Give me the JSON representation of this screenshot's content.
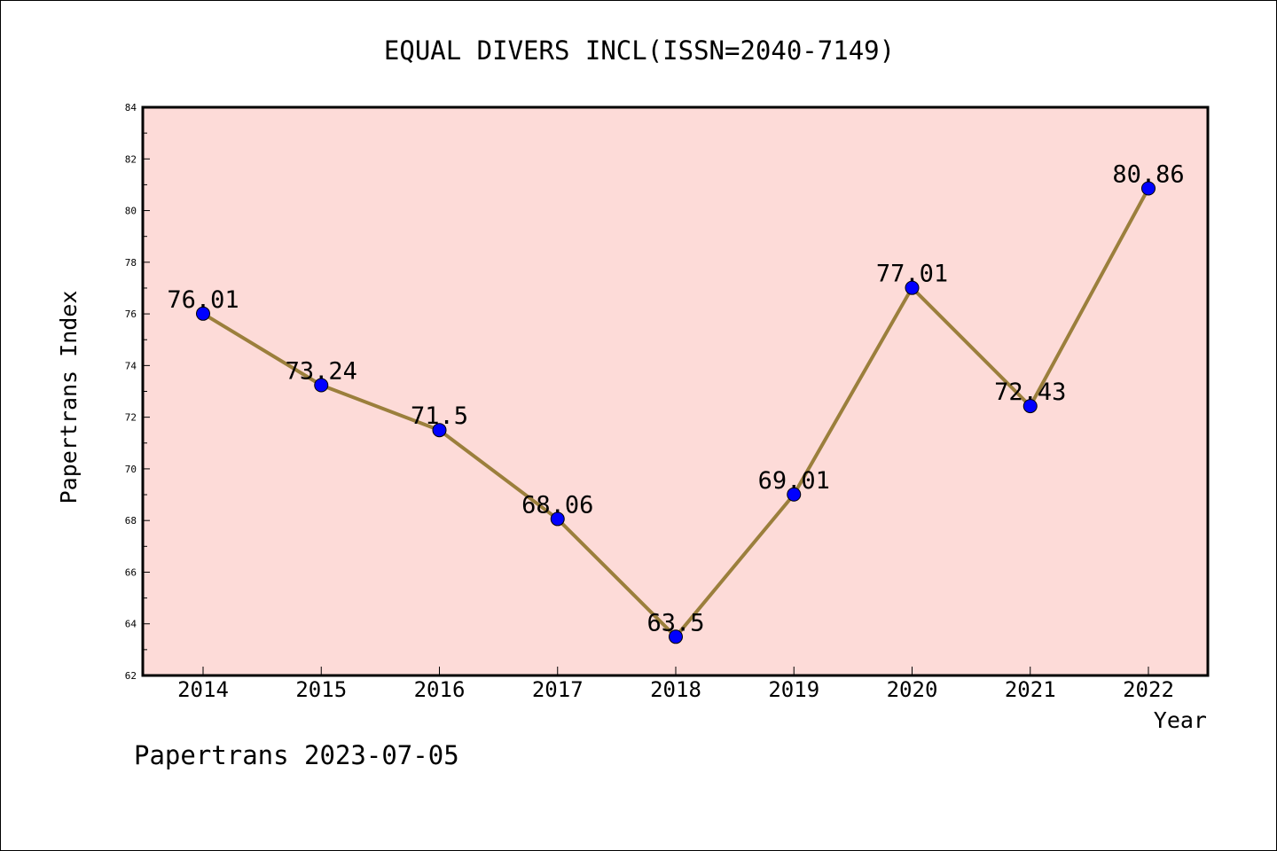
{
  "chart_data": {
    "type": "line",
    "title": "EQUAL DIVERS INCL(ISSN=2040-7149)",
    "xlabel": "Year",
    "ylabel": "Papertrans Index",
    "categories": [
      "2014",
      "2015",
      "2016",
      "2017",
      "2018",
      "2019",
      "2020",
      "2021",
      "2022"
    ],
    "series": [
      {
        "values": [
          76.01,
          73.24,
          71.5,
          68.06,
          63.5,
          69.01,
          77.01,
          72.43,
          80.86
        ],
        "labels": [
          "76.01",
          "73.24",
          "71.5",
          "68.06",
          "63.5",
          "69.01",
          "77.01",
          "72.43",
          "80.86"
        ]
      }
    ],
    "ylim": [
      62,
      84
    ],
    "yticks": [
      "62",
      "64",
      "66",
      "68",
      "70",
      "72",
      "74",
      "76",
      "78",
      "80",
      "82",
      "84"
    ],
    "grid": false,
    "legend": "none"
  },
  "footer": {
    "text": "Papertrans 2023-07-05"
  },
  "colors": {
    "plot_background": "#fddbd8",
    "line": "#9b7f3c",
    "marker": "#0000ff",
    "axis": "#000000"
  }
}
